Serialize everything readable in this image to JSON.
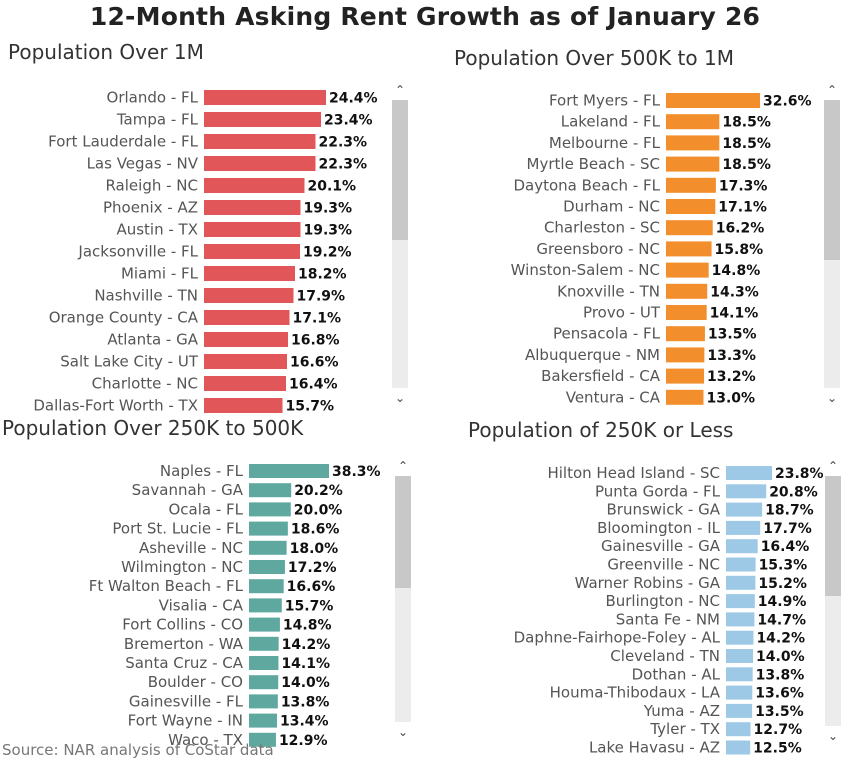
{
  "title": "12-Month Asking Rent Growth as of January 26",
  "source": "Source: NAR analysis of CoStar data",
  "icons": {
    "scroll_up": "chevron-up-icon",
    "scroll_down": "chevron-down-icon"
  },
  "chart_data": [
    {
      "type": "bar",
      "orientation": "horizontal",
      "title": "Population Over 1M",
      "color": "#e15759",
      "xlim": [
        0,
        24.4
      ],
      "categories": [
        "Orlando - FL",
        "Tampa - FL",
        "Fort Lauderdale - FL",
        "Las Vegas - NV",
        "Raleigh - NC",
        "Phoenix - AZ",
        "Austin - TX",
        "Jacksonville - FL",
        "Miami - FL",
        "Nashville - TN",
        "Orange County - CA",
        "Atlanta - GA",
        "Salt Lake City - UT",
        "Charlotte - NC",
        "Dallas-Fort Worth - TX"
      ],
      "values": [
        24.4,
        23.4,
        22.3,
        22.3,
        20.1,
        19.3,
        19.3,
        19.2,
        18.2,
        17.9,
        17.1,
        16.8,
        16.6,
        16.4,
        15.7
      ],
      "value_labels": [
        "24.4%",
        "23.4%",
        "22.3%",
        "22.3%",
        "20.1%",
        "19.3%",
        "19.3%",
        "19.2%",
        "18.2%",
        "17.9%",
        "17.1%",
        "16.8%",
        "16.6%",
        "16.4%",
        "15.7%"
      ]
    },
    {
      "type": "bar",
      "orientation": "horizontal",
      "title": "Population Over 500K to 1M",
      "color": "#f28e2b",
      "xlim": [
        0,
        32.6
      ],
      "categories": [
        "Fort Myers - FL",
        "Lakeland - FL",
        "Melbourne - FL",
        "Myrtle Beach - SC",
        "Daytona Beach - FL",
        "Durham - NC",
        "Charleston - SC",
        "Greensboro - NC",
        "Winston-Salem - NC",
        "Knoxville - TN",
        "Provo - UT",
        "Pensacola - FL",
        "Albuquerque - NM",
        "Bakersfield - CA",
        "Ventura - CA"
      ],
      "values": [
        32.6,
        18.5,
        18.5,
        18.5,
        17.3,
        17.1,
        16.2,
        15.8,
        14.8,
        14.3,
        14.1,
        13.5,
        13.3,
        13.2,
        13.0
      ],
      "value_labels": [
        "32.6%",
        "18.5%",
        "18.5%",
        "18.5%",
        "17.3%",
        "17.1%",
        "16.2%",
        "15.8%",
        "14.8%",
        "14.3%",
        "14.1%",
        "13.5%",
        "13.3%",
        "13.2%",
        "13.0%"
      ]
    },
    {
      "type": "bar",
      "orientation": "horizontal",
      "title": "Population Over 250K to 500K",
      "color": "#5fa89f",
      "xlim": [
        0,
        38.3
      ],
      "categories": [
        "Naples - FL",
        "Savannah - GA",
        "Ocala - FL",
        "Port St. Lucie - FL",
        "Asheville - NC",
        "Wilmington - NC",
        "Ft Walton Beach - FL",
        "Visalia - CA",
        "Fort Collins - CO",
        "Bremerton - WA",
        "Santa Cruz - CA",
        "Boulder - CO",
        "Gainesville - FL",
        "Fort Wayne - IN",
        "Waco - TX"
      ],
      "values": [
        38.3,
        20.2,
        20.0,
        18.6,
        18.0,
        17.2,
        16.6,
        15.7,
        14.8,
        14.2,
        14.1,
        14.0,
        13.8,
        13.4,
        12.9
      ],
      "value_labels": [
        "38.3%",
        "20.2%",
        "20.0%",
        "18.6%",
        "18.0%",
        "17.2%",
        "16.6%",
        "15.7%",
        "14.8%",
        "14.2%",
        "14.1%",
        "14.0%",
        "13.8%",
        "13.4%",
        "12.9%"
      ]
    },
    {
      "type": "bar",
      "orientation": "horizontal",
      "title": "Population of 250K or Less",
      "color": "#9dc9e6",
      "xlim": [
        0,
        23.8
      ],
      "categories": [
        "Hilton Head Island - SC",
        "Punta Gorda - FL",
        "Brunswick - GA",
        "Bloomington - IL",
        "Gainesville - GA",
        "Greenville - NC",
        "Warner Robins - GA",
        "Burlington - NC",
        "Santa Fe - NM",
        "Daphne-Fairhope-Foley - AL",
        "Cleveland - TN",
        "Dothan - AL",
        "Houma-Thibodaux - LA",
        "Yuma - AZ",
        "Tyler - TX",
        "Lake Havasu - AZ"
      ],
      "values": [
        23.8,
        20.8,
        18.7,
        17.7,
        16.4,
        15.3,
        15.2,
        14.9,
        14.7,
        14.2,
        14.0,
        13.8,
        13.6,
        13.5,
        12.7,
        12.5
      ],
      "value_labels": [
        "23.8%",
        "20.8%",
        "18.7%",
        "17.7%",
        "16.4%",
        "15.3%",
        "15.2%",
        "14.9%",
        "14.7%",
        "14.2%",
        "14.0%",
        "13.8%",
        "13.6%",
        "13.5%",
        "12.7%",
        "12.5%"
      ]
    }
  ]
}
